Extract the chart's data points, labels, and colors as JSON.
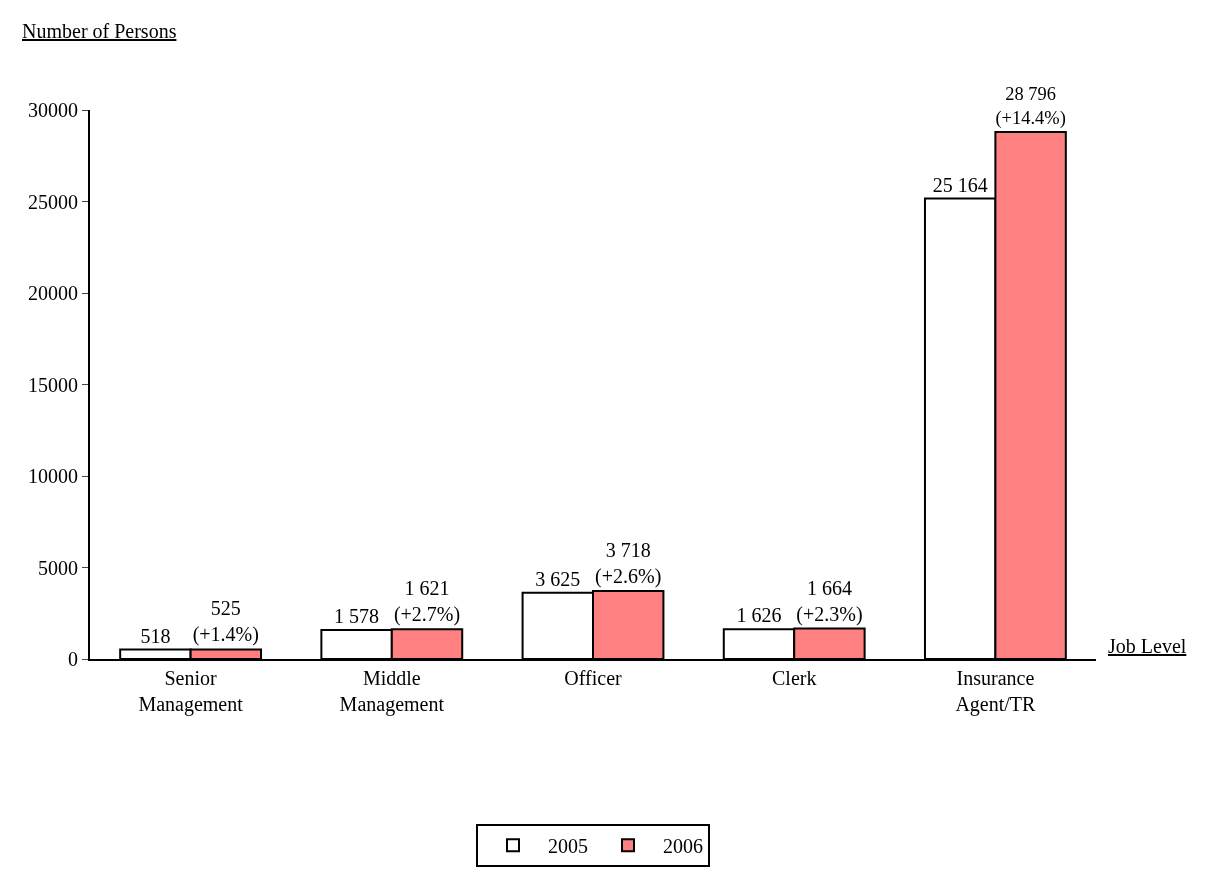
{
  "chart_data": {
    "type": "bar",
    "xlabel": "Job Level",
    "ylabel": "Number of Persons",
    "categories": [
      "Senior Management",
      "Middle Management",
      "Officer",
      "Clerk",
      "Insurance Agent/TR"
    ],
    "series": [
      {
        "name": "2005",
        "color": "#ffffff",
        "values": [
          518,
          1578,
          3625,
          1626,
          25164
        ],
        "value_labels": [
          "518",
          "1 578",
          "3 625",
          "1 626",
          "25 164"
        ]
      },
      {
        "name": "2006",
        "color": "#ff8080",
        "values": [
          525,
          1621,
          3718,
          1664,
          28796
        ],
        "value_labels": [
          "525\n(+1.4%)",
          "1 621\n(+2.7%)",
          "3 718\n(+2.6%)",
          "1 664\n(+2.3%)",
          "28 796\n(+14.4%)"
        ]
      }
    ],
    "ylim": [
      0,
      30000
    ],
    "yticks": [
      0,
      5000,
      10000,
      15000,
      20000,
      25000,
      30000
    ],
    "grid": false,
    "legend": "bottom"
  }
}
